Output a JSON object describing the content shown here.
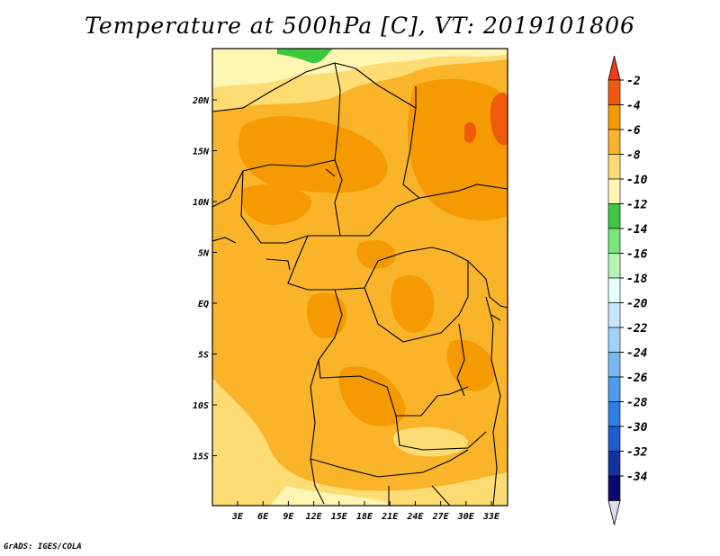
{
  "title": "Temperature at 500hPa [C], VT: 2019101806",
  "credit": "GrADS: IGES/COLA",
  "map": {
    "y_ticks": [
      "20N",
      "15N",
      "10N",
      "5N",
      "EQ",
      "5S",
      "10S",
      "15S"
    ],
    "x_ticks": [
      "3E",
      "6E",
      "9E",
      "12E",
      "15E",
      "18E",
      "21E",
      "24E",
      "27E",
      "30E",
      "33E"
    ]
  },
  "colorbar": {
    "labels": [
      "-2",
      "-4",
      "-6",
      "-8",
      "-10",
      "-12",
      "-14",
      "-16",
      "-18",
      "-20",
      "-22",
      "-24",
      "-26",
      "-28",
      "-30",
      "-32",
      "-34"
    ],
    "colors": [
      "#f05a0a",
      "#f59a00",
      "#f9b42a",
      "#fddc74",
      "#fff6b4",
      "#3cc83c",
      "#78e678",
      "#b4f4b4",
      "#e6ffff",
      "#c8e6ff",
      "#a0d2fa",
      "#78b9f5",
      "#4b9bf0",
      "#2d7de6",
      "#1e5ad2",
      "#1432a0",
      "#0a0a6e"
    ],
    "top_tri": "#f03c14",
    "bottom_tri": "#dcdcf0"
  }
}
